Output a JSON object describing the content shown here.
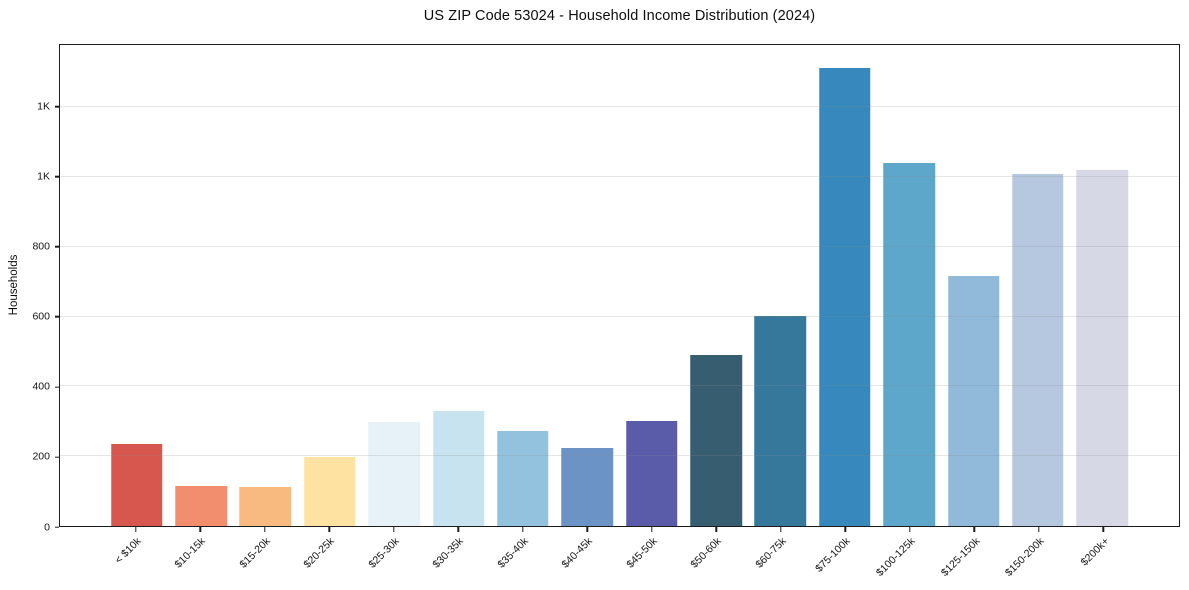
{
  "figure": {
    "background": "#ffffff"
  },
  "chart_data": {
    "type": "bar",
    "title": "US ZIP Code 53024 - Household Income Distribution (2024)",
    "xlabel": "",
    "ylabel": "Households",
    "categories": [
      "< $10k",
      "$10-15k",
      "$15-20k",
      "$20-25k",
      "$25-30k",
      "$30-35k",
      "$35-40k",
      "$40-45k",
      "$45-50k",
      "$50-60k",
      "$60-75k",
      "$75-100k",
      "$100-125k",
      "$125-150k",
      "$150-200k",
      "$200k+"
    ],
    "values": [
      235,
      116,
      112,
      198,
      298,
      331,
      272,
      224,
      300,
      490,
      603,
      1313,
      1040,
      716,
      1009,
      1021
    ],
    "bar_colors": [
      "#d7574e",
      "#f28e6d",
      "#f9ba7f",
      "#fde2a2",
      "#e7f2f8",
      "#c6e3ef",
      "#92c2de",
      "#6b93c6",
      "#5a5caa",
      "#365d70",
      "#35789b",
      "#3789bd",
      "#5ca7ca",
      "#90b9da",
      "#b6c8df",
      "#d7d8e6"
    ],
    "yticks": [
      {
        "value": 0,
        "label": "0"
      },
      {
        "value": 200,
        "label": "200"
      },
      {
        "value": 400,
        "label": "400"
      },
      {
        "value": 600,
        "label": "600"
      },
      {
        "value": 800,
        "label": "800"
      },
      {
        "value": 1000,
        "label": "1K"
      },
      {
        "value": 1200,
        "label": "1K"
      }
    ],
    "ylim": [
      0,
      1379
    ],
    "grid": "horizontal",
    "grid_on": true,
    "legend": "none",
    "spine_color": "#1c1c1c"
  }
}
